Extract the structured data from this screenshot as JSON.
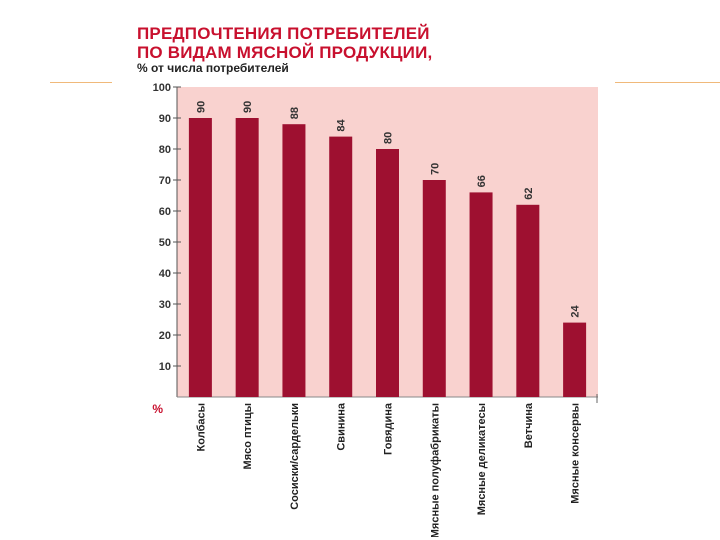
{
  "title_lines": [
    "ПРЕДПОЧТЕНИЯ ПОТРЕБИТЕЛЕЙ",
    "ПО ВИДАМ МЯСНОЙ ПРОДУКЦИИ,"
  ],
  "subtitle": "% от числа потребителей",
  "chart_data": {
    "type": "bar",
    "title": "ПРЕДПОЧТЕНИЯ ПОТРЕБИТЕЛЕЙ ПО ВИДАМ МЯСНОЙ ПРОДУКЦИИ,",
    "subtitle": "% от числа потребителей",
    "ylabel": "%",
    "ylim": [
      0,
      100
    ],
    "yticks": [
      100,
      90,
      80,
      70,
      60,
      50,
      40,
      30,
      20,
      10
    ],
    "categories": [
      "Колбасы",
      "Мясо птицы",
      "Сосиски/сардельки",
      "Свинина",
      "Говядина",
      "Мясные полуфабрикаты",
      "Мясные деликатесы",
      "Ветчина",
      "Мясные консервы"
    ],
    "values": [
      90,
      90,
      88,
      84,
      80,
      70,
      66,
      62,
      24
    ],
    "bar_color": "#9e1030",
    "plot_background": "#f9d2cf",
    "grid": false,
    "value_labels": true
  }
}
